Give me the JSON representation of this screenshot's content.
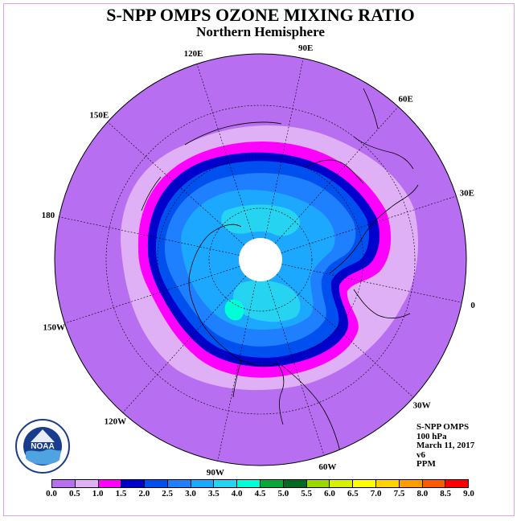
{
  "title": "S-NPP OMPS OZONE MIXING RATIO",
  "subtitle": "Northern Hemisphere",
  "longitude_labels": [
    {
      "text": "90E",
      "lon": 90
    },
    {
      "text": "60E",
      "lon": 60
    },
    {
      "text": "30E",
      "lon": 30
    },
    {
      "text": "0",
      "lon": 0
    },
    {
      "text": "30W",
      "lon": -30
    },
    {
      "text": "60W",
      "lon": -60
    },
    {
      "text": "90W",
      "lon": -90
    },
    {
      "text": "120W",
      "lon": -120
    },
    {
      "text": "150W",
      "lon": -150
    },
    {
      "text": "180",
      "lon": 180
    },
    {
      "text": "150E",
      "lon": 150
    },
    {
      "text": "120E",
      "lon": 120
    }
  ],
  "info": {
    "instrument": "S-NPP OMPS",
    "level": "100 hPa",
    "date": "March 11, 2017",
    "version": "v6",
    "units": "PPM"
  },
  "colorbar": {
    "ticks": [
      "0.0",
      "0.5",
      "1.0",
      "1.5",
      "2.0",
      "2.5",
      "3.0",
      "3.5",
      "4.0",
      "4.5",
      "5.0",
      "5.5",
      "6.0",
      "6.5",
      "7.0",
      "7.5",
      "8.0",
      "8.5",
      "9.0"
    ],
    "colors": [
      "#b86ef0",
      "#e0b0f6",
      "#ff00ff",
      "#0000cc",
      "#0050f0",
      "#1f80ff",
      "#1ca8ff",
      "#26d4f2",
      "#00ffd6",
      "#08a838",
      "#006a20",
      "#9ad800",
      "#d8f000",
      "#ffff00",
      "#ffd200",
      "#ff9c00",
      "#ff5a00",
      "#ff0000",
      "#8a5a3a"
    ]
  },
  "logo": {
    "text": "NOAA",
    "ring_text": "NATIONAL OCEANIC AND ATMOSPHERIC ADMINISTRATION · U.S. DEPARTMENT OF COMMERCE"
  }
}
